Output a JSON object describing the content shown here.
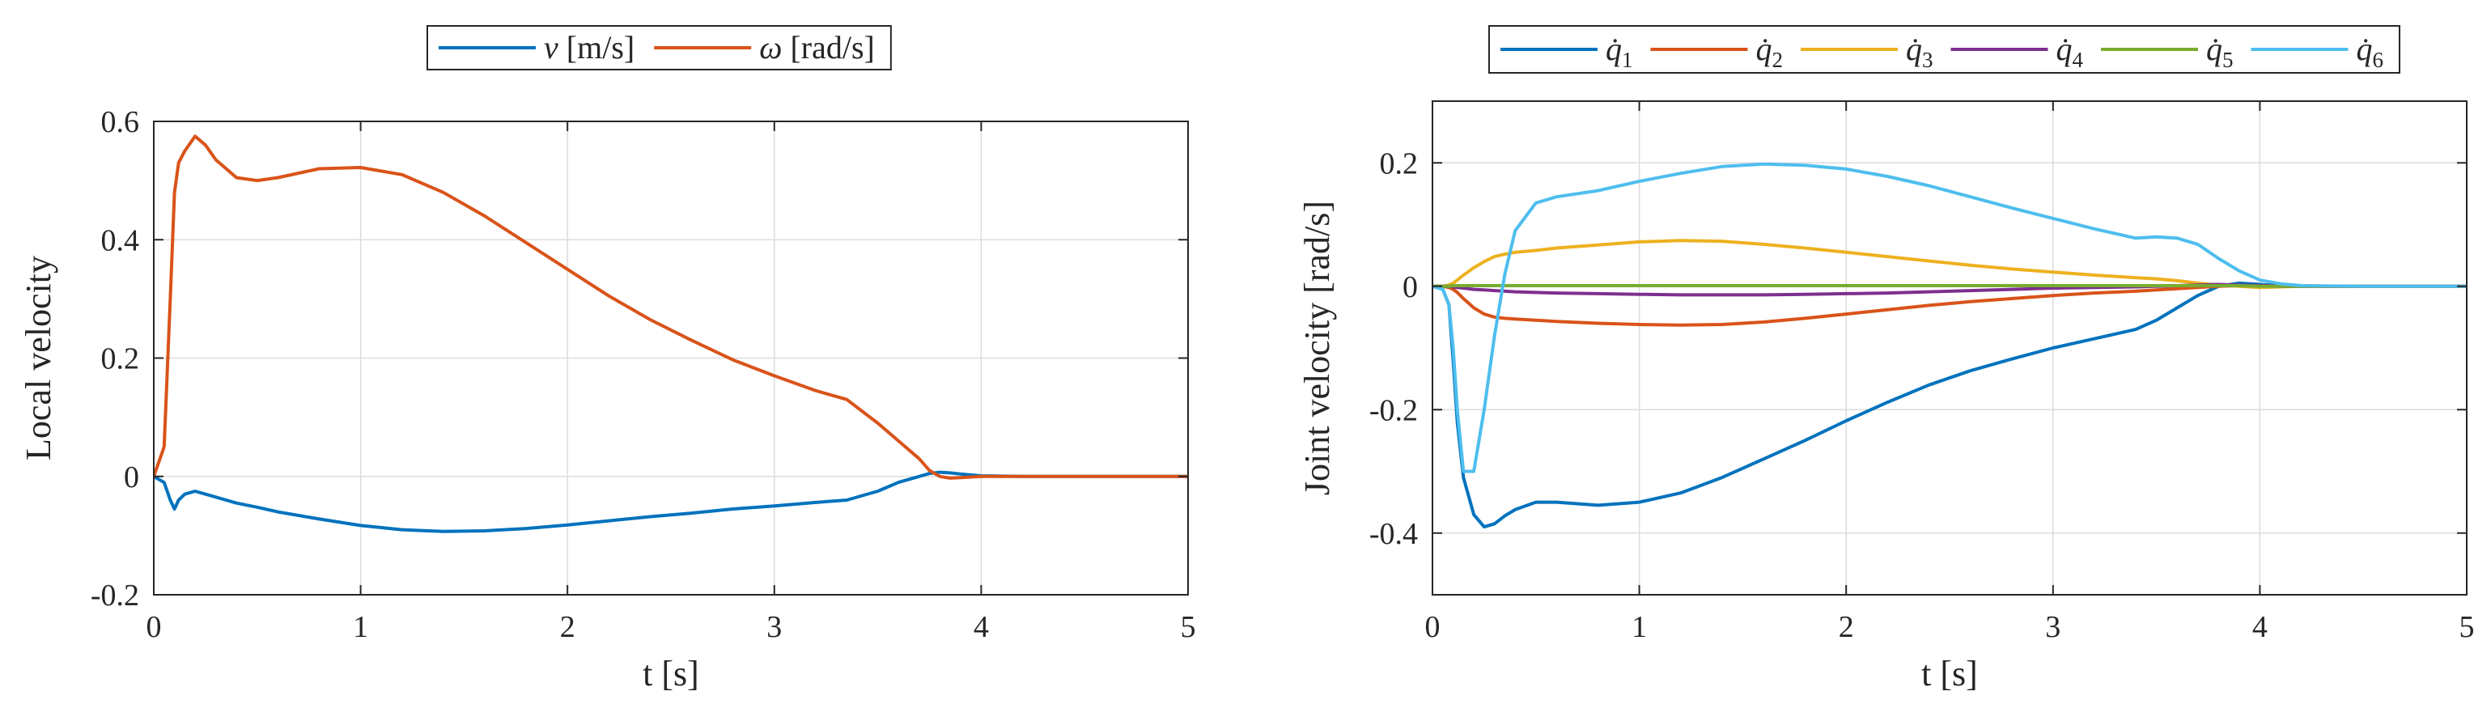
{
  "chart_data": [
    {
      "type": "line",
      "xlabel": "t [s]",
      "ylabel": "Local velocity",
      "xlim": [
        0,
        5
      ],
      "ylim": [
        -0.2,
        0.6
      ],
      "xticks": [
        0,
        1,
        2,
        3,
        4,
        5
      ],
      "xtick_labels": [
        "0",
        "1",
        "2",
        "3",
        "4",
        "5"
      ],
      "yticks": [
        -0.2,
        0,
        0.2,
        0.4,
        0.6
      ],
      "ytick_labels": [
        "-0.2",
        "0",
        "0.2",
        "0.4",
        "0.6"
      ],
      "grid": true,
      "legend_location": "top-center-outside",
      "x": [
        0,
        0.05,
        0.08,
        0.1,
        0.12,
        0.15,
        0.2,
        0.25,
        0.3,
        0.4,
        0.5,
        0.6,
        0.8,
        1.0,
        1.2,
        1.4,
        1.6,
        1.8,
        2.0,
        2.2,
        2.4,
        2.6,
        2.8,
        3.0,
        3.2,
        3.35,
        3.5,
        3.6,
        3.7,
        3.75,
        3.8,
        3.85,
        3.9,
        4.0,
        4.2,
        4.5,
        5.0
      ],
      "series": [
        {
          "name": "v",
          "label_var": "v",
          "label_unit": " [m/s]",
          "color": "#0072BD",
          "values": [
            0,
            -0.01,
            -0.04,
            -0.055,
            -0.04,
            -0.03,
            -0.025,
            -0.03,
            -0.035,
            -0.045,
            -0.052,
            -0.06,
            -0.072,
            -0.083,
            -0.09,
            -0.093,
            -0.092,
            -0.088,
            -0.082,
            -0.075,
            -0.068,
            -0.062,
            -0.055,
            -0.05,
            -0.044,
            -0.04,
            -0.025,
            -0.01,
            0.0,
            0.005,
            0.007,
            0.006,
            0.004,
            0.001,
            0,
            0,
            0
          ]
        },
        {
          "name": "omega",
          "label_var": "ω",
          "label_unit": " [rad/s]",
          "color": "#D95319",
          "values": [
            0,
            0.05,
            0.3,
            0.48,
            0.53,
            0.55,
            0.575,
            0.56,
            0.535,
            0.505,
            0.5,
            0.505,
            0.52,
            0.522,
            0.51,
            0.48,
            0.44,
            0.395,
            0.35,
            0.305,
            0.265,
            0.23,
            0.197,
            0.17,
            0.145,
            0.13,
            0.09,
            0.06,
            0.03,
            0.01,
            0.0,
            -0.003,
            -0.002,
            0.0,
            0,
            0,
            0
          ]
        }
      ]
    },
    {
      "type": "line",
      "xlabel": "t [s]",
      "ylabel": "Joint velocity [rad/s]",
      "xlim": [
        0,
        5
      ],
      "ylim": [
        -0.5,
        0.3
      ],
      "xticks": [
        0,
        1,
        2,
        3,
        4,
        5
      ],
      "xtick_labels": [
        "0",
        "1",
        "2",
        "3",
        "4",
        "5"
      ],
      "yticks": [
        -0.4,
        -0.2,
        0,
        0.2
      ],
      "ytick_labels": [
        "-0.4",
        "-0.2",
        "0",
        "0.2"
      ],
      "grid": true,
      "legend_location": "top-center-outside",
      "x": [
        0,
        0.05,
        0.08,
        0.1,
        0.12,
        0.15,
        0.2,
        0.25,
        0.3,
        0.35,
        0.4,
        0.5,
        0.6,
        0.8,
        1.0,
        1.2,
        1.4,
        1.6,
        1.8,
        2.0,
        2.2,
        2.4,
        2.6,
        2.8,
        3.0,
        3.2,
        3.4,
        3.5,
        3.6,
        3.7,
        3.8,
        3.9,
        4.0,
        4.1,
        4.2,
        4.5,
        5.0
      ],
      "series": [
        {
          "name": "q1",
          "label_var": "q̇",
          "label_sub": "1",
          "color": "#0072BD",
          "values": [
            0,
            -0.005,
            -0.03,
            -0.12,
            -0.22,
            -0.31,
            -0.37,
            -0.39,
            -0.385,
            -0.372,
            -0.362,
            -0.35,
            -0.35,
            -0.355,
            -0.35,
            -0.335,
            -0.31,
            -0.28,
            -0.25,
            -0.218,
            -0.188,
            -0.16,
            -0.137,
            -0.118,
            -0.1,
            -0.085,
            -0.07,
            -0.055,
            -0.035,
            -0.015,
            0.0,
            0.005,
            0.003,
            0.001,
            0,
            0,
            0
          ]
        },
        {
          "name": "q2",
          "label_var": "q̇",
          "label_sub": "2",
          "color": "#D95319",
          "values": [
            0,
            0,
            -0.002,
            -0.005,
            -0.01,
            -0.02,
            -0.035,
            -0.045,
            -0.05,
            -0.052,
            -0.053,
            -0.055,
            -0.057,
            -0.06,
            -0.062,
            -0.063,
            -0.062,
            -0.058,
            -0.052,
            -0.045,
            -0.038,
            -0.031,
            -0.025,
            -0.02,
            -0.015,
            -0.011,
            -0.008,
            -0.006,
            -0.004,
            -0.002,
            0.0,
            0.001,
            0.001,
            0,
            0,
            0,
            0
          ]
        },
        {
          "name": "q3",
          "label_var": "q̇",
          "label_sub": "3",
          "color": "#EDB120",
          "values": [
            0,
            0,
            0.002,
            0.005,
            0.01,
            0.018,
            0.03,
            0.04,
            0.048,
            0.052,
            0.055,
            0.058,
            0.062,
            0.067,
            0.072,
            0.074,
            0.073,
            0.068,
            0.062,
            0.055,
            0.048,
            0.041,
            0.034,
            0.028,
            0.023,
            0.018,
            0.014,
            0.012,
            0.009,
            0.005,
            0.002,
            0.0,
            -0.002,
            -0.001,
            0,
            0,
            0
          ]
        },
        {
          "name": "q4",
          "label_var": "q̇",
          "label_sub": "4",
          "color": "#7E2F8E",
          "values": [
            0,
            0,
            0,
            -0.001,
            -0.002,
            -0.003,
            -0.005,
            -0.006,
            -0.007,
            -0.008,
            -0.009,
            -0.01,
            -0.011,
            -0.012,
            -0.013,
            -0.014,
            -0.014,
            -0.014,
            -0.013,
            -0.012,
            -0.011,
            -0.009,
            -0.007,
            -0.005,
            -0.003,
            -0.002,
            -0.001,
            0,
            0.001,
            0.002,
            0.003,
            0.002,
            0.001,
            0,
            0,
            0,
            0
          ]
        },
        {
          "name": "q5",
          "label_var": "q̇",
          "label_sub": "5",
          "color": "#77AC30",
          "values": [
            0,
            0,
            0,
            0.001,
            0.001,
            0.001,
            0.001,
            0.001,
            0.001,
            0.001,
            0.001,
            0.001,
            0.001,
            0.001,
            0.001,
            0.001,
            0.001,
            0.001,
            0.001,
            0.001,
            0.001,
            0.001,
            0.001,
            0.001,
            0.001,
            0.001,
            0.001,
            0.001,
            0.001,
            0.001,
            0.001,
            0.001,
            0,
            0,
            0,
            0,
            0
          ]
        },
        {
          "name": "q6",
          "label_var": "q̇",
          "label_sub": "6",
          "color": "#4DBEEE",
          "values": [
            0,
            -0.005,
            -0.03,
            -0.1,
            -0.2,
            -0.3,
            -0.3,
            -0.2,
            -0.08,
            0.02,
            0.09,
            0.135,
            0.145,
            0.155,
            0.17,
            0.183,
            0.194,
            0.198,
            0.196,
            0.19,
            0.178,
            0.163,
            0.145,
            0.127,
            0.11,
            0.093,
            0.078,
            0.08,
            0.078,
            0.068,
            0.045,
            0.025,
            0.01,
            0.004,
            0.001,
            0,
            0
          ]
        }
      ]
    }
  ]
}
